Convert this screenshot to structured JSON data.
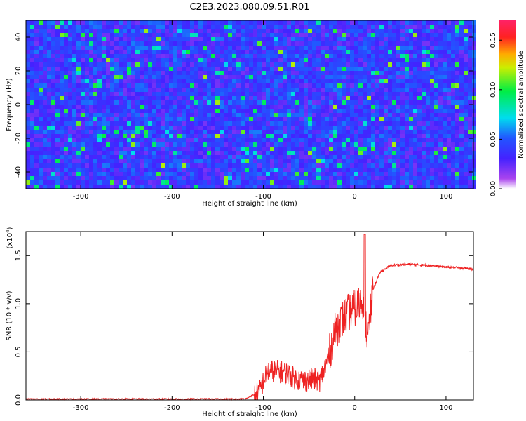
{
  "title": "C2E3.2023.080.09.51.R01",
  "chart_data": [
    {
      "type": "heatmap",
      "xlabel": "Height of straight line (km)",
      "ylabel": "Frequency (Hz)",
      "xlim": [
        -360,
        130
      ],
      "ylim": [
        -50,
        50
      ],
      "xticks": [
        -300,
        -200,
        -100,
        0,
        100
      ],
      "yticks": [
        -40,
        -20,
        0,
        20,
        40
      ],
      "grid": false,
      "colorbar": {
        "label": "Normalized spectral amplitude",
        "range": [
          0,
          0.17
        ],
        "ticks": [
          "0.00",
          "0.05",
          "0.10",
          "0.15"
        ],
        "colormap": "rainbow (white-violet-blue-cyan-green-yellow-red)"
      },
      "description_values": "noise field, mostly 0.01-0.06 (blue/cyan), scattered peaks up to ~0.12 (green/yellow)"
    },
    {
      "type": "line",
      "xlabel": "Height of straight line (km)",
      "ylabel": "SNR (10 * v/v)",
      "yscale_label": "(x10",
      "yscale_exp": "4",
      "xlim": [
        -360,
        130
      ],
      "ylim": [
        0,
        1.75
      ],
      "xticks": [
        -300,
        -200,
        -100,
        0,
        100
      ],
      "yticks": [
        "0.0",
        "0.5",
        "1.0",
        "1.5"
      ],
      "grid": false,
      "series": [
        {
          "color": "#ee2222",
          "x": [
            -360,
            -300,
            -200,
            -120,
            -105,
            -95,
            -85,
            -75,
            -65,
            -55,
            -45,
            -38,
            -30,
            -22,
            -15,
            -8,
            0,
            5,
            10,
            14,
            20,
            28,
            40,
            60,
            80,
            100,
            120,
            130
          ],
          "y": [
            0.01,
            0.01,
            0.01,
            0.01,
            0.08,
            0.3,
            0.3,
            0.28,
            0.22,
            0.2,
            0.22,
            0.2,
            0.4,
            0.7,
            0.82,
            0.9,
            0.95,
            1.0,
            1.05,
            0.6,
            1.15,
            1.33,
            1.4,
            1.41,
            1.4,
            1.38,
            1.37,
            1.36
          ]
        }
      ]
    }
  ],
  "colors": {
    "line": "#ee2222",
    "axes": "#000000",
    "background": "#ffffff"
  }
}
